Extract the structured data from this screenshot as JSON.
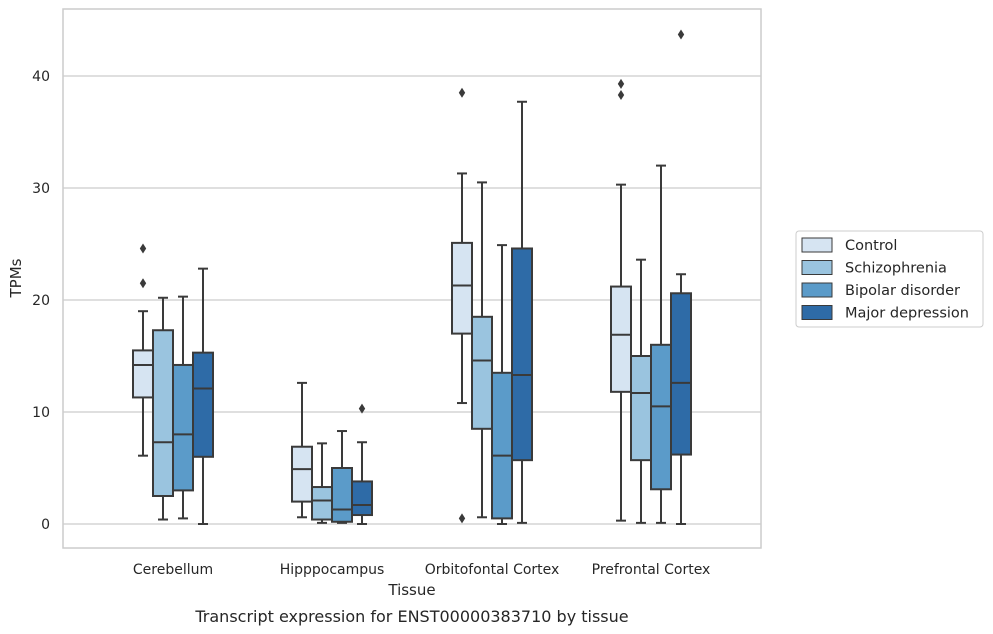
{
  "chart_data": {
    "type": "box",
    "title": "",
    "caption": "Transcript expression for ENST00000383710 by tissue",
    "xlabel": "Tissue",
    "ylabel": "TPMs",
    "ylim": [
      -2,
      46
    ],
    "yticks": [
      0,
      10,
      20,
      30,
      40
    ],
    "grid": "horizontal",
    "legend_position": "right",
    "categories": [
      "Cerebellum",
      "Hipppocampus",
      "Orbitofontal Cortex",
      "Prefrontal Cortex"
    ],
    "series": [
      {
        "name": "Control",
        "color": "#d6e4f2",
        "boxes": [
          {
            "min": 6.1,
            "q1": 11.3,
            "median": 14.2,
            "q3": 15.5,
            "max": 19.0,
            "outliers": [
              21.5,
              24.6
            ]
          },
          {
            "min": 0.6,
            "q1": 2.0,
            "median": 4.9,
            "q3": 6.9,
            "max": 12.6,
            "outliers": []
          },
          {
            "min": 10.8,
            "q1": 17.0,
            "median": 21.3,
            "q3": 25.1,
            "max": 31.3,
            "outliers": [
              0.5,
              38.5
            ]
          },
          {
            "min": 0.3,
            "q1": 11.8,
            "median": 16.9,
            "q3": 21.2,
            "max": 30.3,
            "outliers": [
              38.3,
              39.3
            ]
          }
        ]
      },
      {
        "name": "Schizophrenia",
        "color": "#9ac4df",
        "boxes": [
          {
            "min": 0.4,
            "q1": 2.5,
            "median": 7.3,
            "q3": 17.3,
            "max": 20.2,
            "outliers": []
          },
          {
            "min": 0.1,
            "q1": 0.4,
            "median": 2.1,
            "q3": 3.3,
            "max": 7.2,
            "outliers": []
          },
          {
            "min": 0.6,
            "q1": 8.5,
            "median": 14.6,
            "q3": 18.5,
            "max": 30.5,
            "outliers": []
          },
          {
            "min": 0.1,
            "q1": 5.7,
            "median": 11.7,
            "q3": 15.0,
            "max": 23.6,
            "outliers": []
          }
        ]
      },
      {
        "name": "Bipolar disorder",
        "color": "#5b9bc9",
        "boxes": [
          {
            "min": 0.5,
            "q1": 3.0,
            "median": 8.0,
            "q3": 14.2,
            "max": 20.3,
            "outliers": []
          },
          {
            "min": 0.1,
            "q1": 0.2,
            "median": 1.3,
            "q3": 5.0,
            "max": 8.3,
            "outliers": []
          },
          {
            "min": 0.0,
            "q1": 0.5,
            "median": 6.1,
            "q3": 13.5,
            "max": 24.9,
            "outliers": []
          },
          {
            "min": 0.1,
            "q1": 3.1,
            "median": 10.5,
            "q3": 16.0,
            "max": 32.0,
            "outliers": []
          }
        ]
      },
      {
        "name": "Major depression",
        "color": "#2e6ba7",
        "boxes": [
          {
            "min": 0.0,
            "q1": 6.0,
            "median": 12.1,
            "q3": 15.3,
            "max": 22.8,
            "outliers": []
          },
          {
            "min": 0.0,
            "q1": 0.8,
            "median": 1.7,
            "q3": 3.8,
            "max": 7.3,
            "outliers": [
              10.3
            ]
          },
          {
            "min": 0.1,
            "q1": 5.7,
            "median": 13.3,
            "q3": 24.6,
            "max": 37.7,
            "outliers": []
          },
          {
            "min": 0.0,
            "q1": 6.2,
            "median": 12.6,
            "q3": 20.6,
            "max": 22.3,
            "outliers": [
              43.7
            ]
          }
        ]
      }
    ]
  }
}
